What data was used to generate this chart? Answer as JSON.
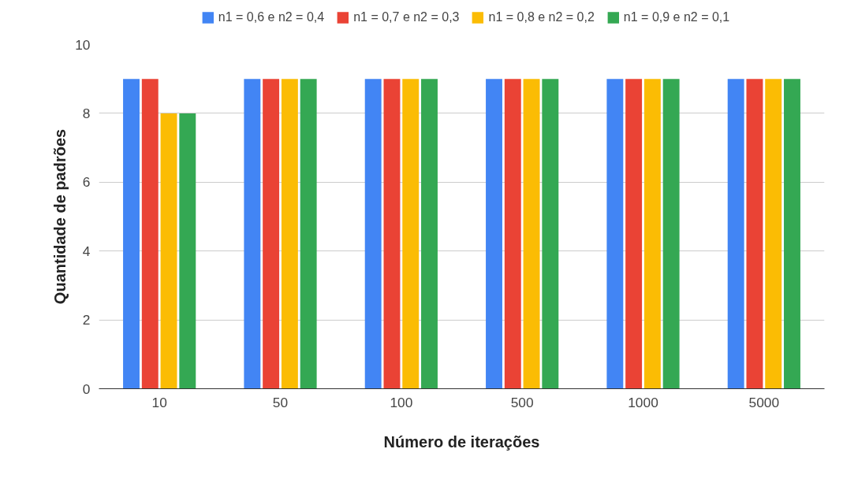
{
  "chart_data": {
    "type": "bar",
    "xlabel": "Número de iterações",
    "ylabel": "Quantidade de padrões",
    "categories": [
      "10",
      "50",
      "100",
      "500",
      "1000",
      "5000"
    ],
    "series": [
      {
        "name": "n1 = 0,6 e n2 = 0,4",
        "color": "#4285f4",
        "values": [
          9,
          9,
          9,
          9,
          9,
          9
        ]
      },
      {
        "name": "n1 = 0,7 e n2 = 0,3",
        "color": "#ea4335",
        "values": [
          9,
          9,
          9,
          9,
          9,
          9
        ]
      },
      {
        "name": "n1 = 0,8 e n2 = 0,2",
        "color": "#fbbc04",
        "values": [
          8,
          9,
          9,
          9,
          9,
          9
        ]
      },
      {
        "name": "n1 = 0,9 e n2 = 0,1",
        "color": "#34a853",
        "values": [
          8,
          9,
          9,
          9,
          9,
          9
        ]
      }
    ],
    "ylim": [
      0,
      10
    ],
    "yticks": [
      0,
      2,
      4,
      6,
      8,
      10
    ],
    "grid": "y",
    "legend": "top"
  }
}
